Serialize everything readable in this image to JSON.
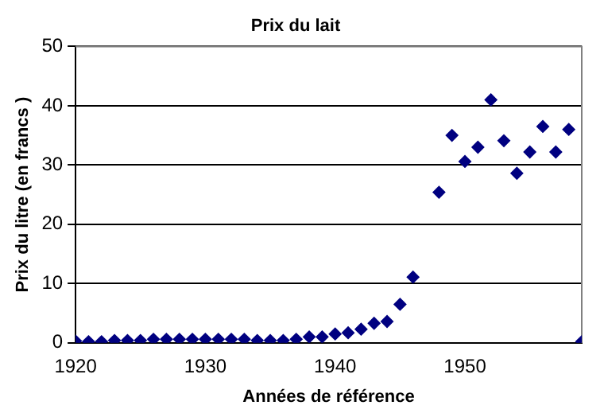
{
  "chart_data": {
    "type": "scatter",
    "title": "Prix du lait",
    "xlabel": "Années de référence",
    "ylabel": "Prix du litre (en francs )",
    "x": [
      1920,
      1921,
      1922,
      1923,
      1924,
      1925,
      1926,
      1927,
      1928,
      1929,
      1930,
      1931,
      1932,
      1933,
      1934,
      1935,
      1936,
      1937,
      1938,
      1939,
      1940,
      1941,
      1942,
      1943,
      1944,
      1945,
      1946,
      1948,
      1949,
      1950,
      1951,
      1952,
      1953,
      1954,
      1955,
      1956,
      1957,
      1958,
      1959
    ],
    "series": [
      {
        "color": "#000080",
        "values": [
          0.3,
          0.2,
          0.2,
          0.4,
          0.4,
          0.4,
          0.6,
          0.6,
          0.6,
          0.6,
          0.6,
          0.6,
          0.6,
          0.6,
          0.4,
          0.4,
          0.4,
          0.6,
          1,
          1,
          1.5,
          1.7,
          2.3,
          3.3,
          3.6,
          6.5,
          11.1,
          25.4,
          35,
          30.6,
          33,
          41,
          34.1,
          28.6,
          32.2,
          36.5,
          32.2,
          36,
          0.2
        ]
      }
    ],
    "xlim": [
      1920,
      1959
    ],
    "xticks": [
      1920,
      1930,
      1940,
      1950
    ],
    "ylim": [
      0,
      50
    ],
    "yticks": [
      0,
      10,
      20,
      30,
      40,
      50
    ],
    "grid": "y",
    "legend": false,
    "marker": "diamond"
  }
}
